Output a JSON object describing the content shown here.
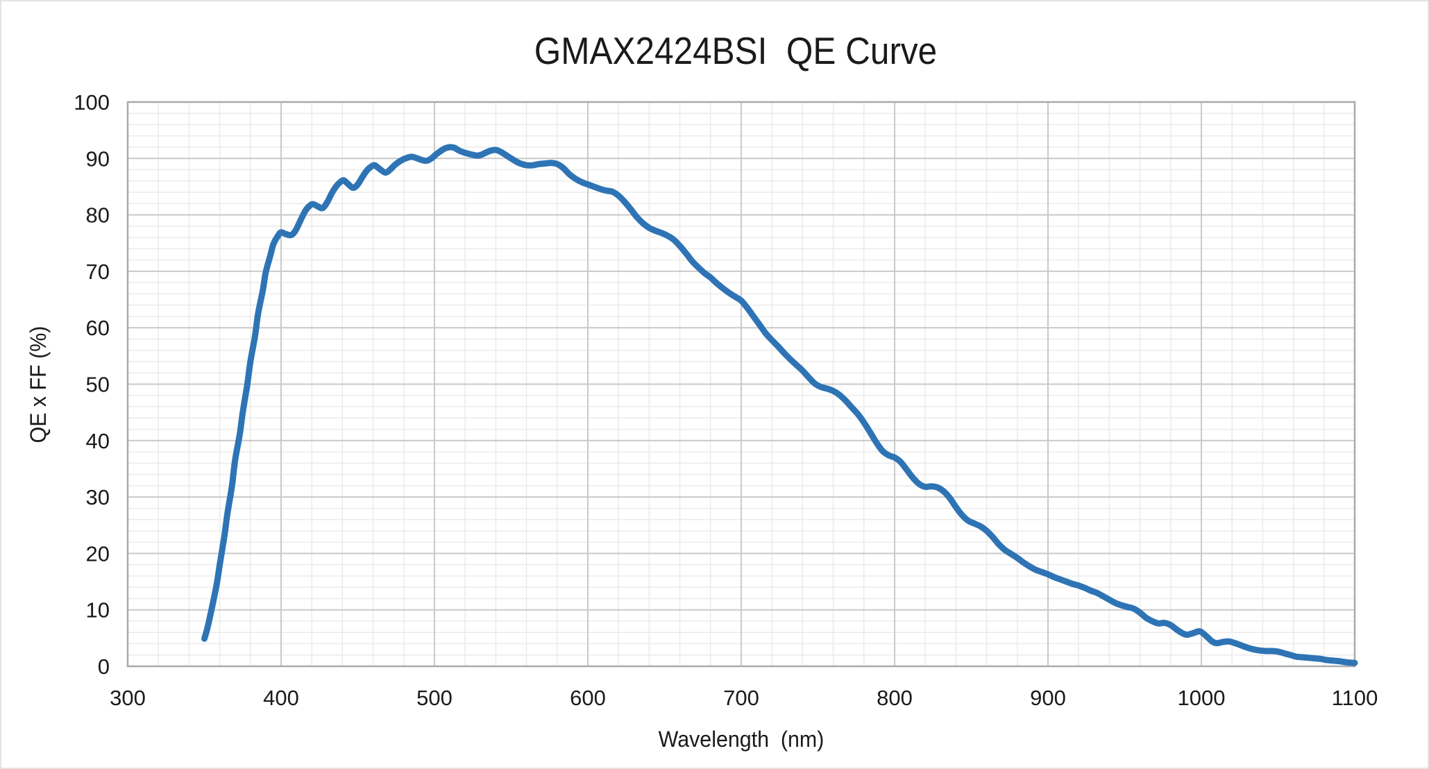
{
  "chart_data": {
    "type": "line",
    "title": "GMAX2424BSI  QE Curve",
    "xlabel": "Wavelength  (nm)",
    "ylabel": "QE x FF (%)",
    "xlim": [
      300,
      1100
    ],
    "ylim": [
      0,
      100
    ],
    "x_tick_step": 100,
    "y_tick_step": 10,
    "x_minor_step": 20,
    "y_minor_step": 2,
    "x_ticks": [
      300,
      400,
      500,
      600,
      700,
      800,
      900,
      1000,
      1100
    ],
    "y_ticks": [
      0,
      10,
      20,
      30,
      40,
      50,
      60,
      70,
      80,
      90,
      100
    ],
    "grid": "major-and-minor",
    "legend": "none",
    "colors": {
      "line": "#2E74B5",
      "major_grid": "#C9C9C9",
      "minor_grid": "#EBEBEB",
      "axis_border": "#A9A9A9",
      "text": "#1A1A1A",
      "background": "#FFFFFF"
    },
    "line_width": 9,
    "series": [
      {
        "name": "QE x FF",
        "points": [
          [
            350,
            4.9
          ],
          [
            352,
            6.8
          ],
          [
            355,
            10.5
          ],
          [
            358,
            14.5
          ],
          [
            360,
            18
          ],
          [
            363,
            23
          ],
          [
            365,
            27
          ],
          [
            368,
            32
          ],
          [
            370,
            36.5
          ],
          [
            373,
            41
          ],
          [
            375,
            45
          ],
          [
            378,
            50
          ],
          [
            380,
            54
          ],
          [
            383,
            58.5
          ],
          [
            385,
            62.5
          ],
          [
            388,
            66.5
          ],
          [
            390,
            69.8
          ],
          [
            393,
            72.8
          ],
          [
            395,
            74.8
          ],
          [
            398,
            76.3
          ],
          [
            400,
            76.9
          ],
          [
            403,
            76.6
          ],
          [
            406,
            76.4
          ],
          [
            408,
            76.7
          ],
          [
            410,
            77.5
          ],
          [
            413,
            79.2
          ],
          [
            416,
            80.8
          ],
          [
            419,
            81.7
          ],
          [
            421,
            81.9
          ],
          [
            424,
            81.5
          ],
          [
            427,
            81.2
          ],
          [
            430,
            82.2
          ],
          [
            433,
            83.8
          ],
          [
            436,
            85.1
          ],
          [
            439,
            85.9
          ],
          [
            441,
            86.1
          ],
          [
            444,
            85.4
          ],
          [
            447,
            84.8
          ],
          [
            450,
            85.4
          ],
          [
            453,
            86.7
          ],
          [
            456,
            87.9
          ],
          [
            459,
            88.6
          ],
          [
            461,
            88.8
          ],
          [
            464,
            88.2
          ],
          [
            468,
            87.5
          ],
          [
            471,
            88
          ],
          [
            474,
            88.8
          ],
          [
            478,
            89.6
          ],
          [
            482,
            90.1
          ],
          [
            485,
            90.3
          ],
          [
            488,
            90.1
          ],
          [
            492,
            89.7
          ],
          [
            495,
            89.6
          ],
          [
            498,
            90
          ],
          [
            501,
            90.7
          ],
          [
            504,
            91.3
          ],
          [
            507,
            91.8
          ],
          [
            510,
            92
          ],
          [
            513,
            91.9
          ],
          [
            516,
            91.4
          ],
          [
            520,
            91
          ],
          [
            524,
            90.7
          ],
          [
            528,
            90.5
          ],
          [
            531,
            90.7
          ],
          [
            534,
            91.1
          ],
          [
            537,
            91.4
          ],
          [
            540,
            91.5
          ],
          [
            543,
            91.2
          ],
          [
            546,
            90.7
          ],
          [
            550,
            90
          ],
          [
            553,
            89.5
          ],
          [
            556,
            89.1
          ],
          [
            560,
            88.8
          ],
          [
            564,
            88.8
          ],
          [
            568,
            89
          ],
          [
            572,
            89.1
          ],
          [
            576,
            89.2
          ],
          [
            580,
            89
          ],
          [
            584,
            88.3
          ],
          [
            588,
            87.2
          ],
          [
            592,
            86.4
          ],
          [
            596,
            85.8
          ],
          [
            600,
            85.4
          ],
          [
            604,
            85
          ],
          [
            608,
            84.6
          ],
          [
            612,
            84.3
          ],
          [
            616,
            84.1
          ],
          [
            620,
            83.4
          ],
          [
            624,
            82.3
          ],
          [
            628,
            81
          ],
          [
            632,
            79.6
          ],
          [
            636,
            78.5
          ],
          [
            640,
            77.7
          ],
          [
            644,
            77.2
          ],
          [
            648,
            76.8
          ],
          [
            652,
            76.3
          ],
          [
            656,
            75.6
          ],
          [
            660,
            74.5
          ],
          [
            664,
            73.2
          ],
          [
            668,
            71.8
          ],
          [
            672,
            70.7
          ],
          [
            676,
            69.7
          ],
          [
            680,
            68.9
          ],
          [
            684,
            67.9
          ],
          [
            688,
            67
          ],
          [
            692,
            66.2
          ],
          [
            696,
            65.5
          ],
          [
            700,
            64.8
          ],
          [
            704,
            63.5
          ],
          [
            708,
            62
          ],
          [
            712,
            60.5
          ],
          [
            716,
            59
          ],
          [
            720,
            57.8
          ],
          [
            724,
            56.7
          ],
          [
            728,
            55.5
          ],
          [
            732,
            54.4
          ],
          [
            736,
            53.4
          ],
          [
            740,
            52.4
          ],
          [
            744,
            51.2
          ],
          [
            748,
            50.1
          ],
          [
            752,
            49.5
          ],
          [
            756,
            49.2
          ],
          [
            760,
            48.8
          ],
          [
            764,
            48.1
          ],
          [
            768,
            47.1
          ],
          [
            772,
            45.9
          ],
          [
            776,
            44.7
          ],
          [
            780,
            43.2
          ],
          [
            784,
            41.5
          ],
          [
            788,
            39.7
          ],
          [
            792,
            38.2
          ],
          [
            796,
            37.4
          ],
          [
            800,
            37
          ],
          [
            804,
            36.2
          ],
          [
            808,
            34.8
          ],
          [
            812,
            33.4
          ],
          [
            816,
            32.3
          ],
          [
            820,
            31.8
          ],
          [
            824,
            31.9
          ],
          [
            828,
            31.7
          ],
          [
            832,
            31
          ],
          [
            836,
            29.8
          ],
          [
            840,
            28.2
          ],
          [
            844,
            26.8
          ],
          [
            848,
            25.8
          ],
          [
            852,
            25.3
          ],
          [
            856,
            24.8
          ],
          [
            860,
            24
          ],
          [
            864,
            22.9
          ],
          [
            868,
            21.6
          ],
          [
            872,
            20.6
          ],
          [
            876,
            19.9
          ],
          [
            880,
            19.2
          ],
          [
            884,
            18.4
          ],
          [
            888,
            17.7
          ],
          [
            892,
            17.1
          ],
          [
            896,
            16.7
          ],
          [
            900,
            16.3
          ],
          [
            904,
            15.8
          ],
          [
            908,
            15.4
          ],
          [
            912,
            15
          ],
          [
            916,
            14.6
          ],
          [
            920,
            14.3
          ],
          [
            924,
            13.9
          ],
          [
            928,
            13.4
          ],
          [
            932,
            13
          ],
          [
            936,
            12.4
          ],
          [
            940,
            11.8
          ],
          [
            944,
            11.2
          ],
          [
            948,
            10.8
          ],
          [
            952,
            10.5
          ],
          [
            956,
            10.2
          ],
          [
            960,
            9.5
          ],
          [
            964,
            8.6
          ],
          [
            968,
            8
          ],
          [
            972,
            7.6
          ],
          [
            976,
            7.7
          ],
          [
            980,
            7.3
          ],
          [
            984,
            6.5
          ],
          [
            988,
            5.8
          ],
          [
            991,
            5.6
          ],
          [
            995,
            5.9
          ],
          [
            999,
            6.2
          ],
          [
            1003,
            5.4
          ],
          [
            1007,
            4.4
          ],
          [
            1010,
            4.1
          ],
          [
            1014,
            4.3
          ],
          [
            1018,
            4.4
          ],
          [
            1022,
            4.1
          ],
          [
            1026,
            3.7
          ],
          [
            1030,
            3.3
          ],
          [
            1034,
            3
          ],
          [
            1038,
            2.8
          ],
          [
            1042,
            2.7
          ],
          [
            1046,
            2.7
          ],
          [
            1050,
            2.6
          ],
          [
            1054,
            2.3
          ],
          [
            1058,
            2
          ],
          [
            1062,
            1.7
          ],
          [
            1066,
            1.6
          ],
          [
            1070,
            1.5
          ],
          [
            1074,
            1.4
          ],
          [
            1078,
            1.3
          ],
          [
            1082,
            1.1
          ],
          [
            1086,
            1
          ],
          [
            1090,
            0.9
          ],
          [
            1095,
            0.7
          ],
          [
            1100,
            0.6
          ]
        ]
      }
    ]
  }
}
